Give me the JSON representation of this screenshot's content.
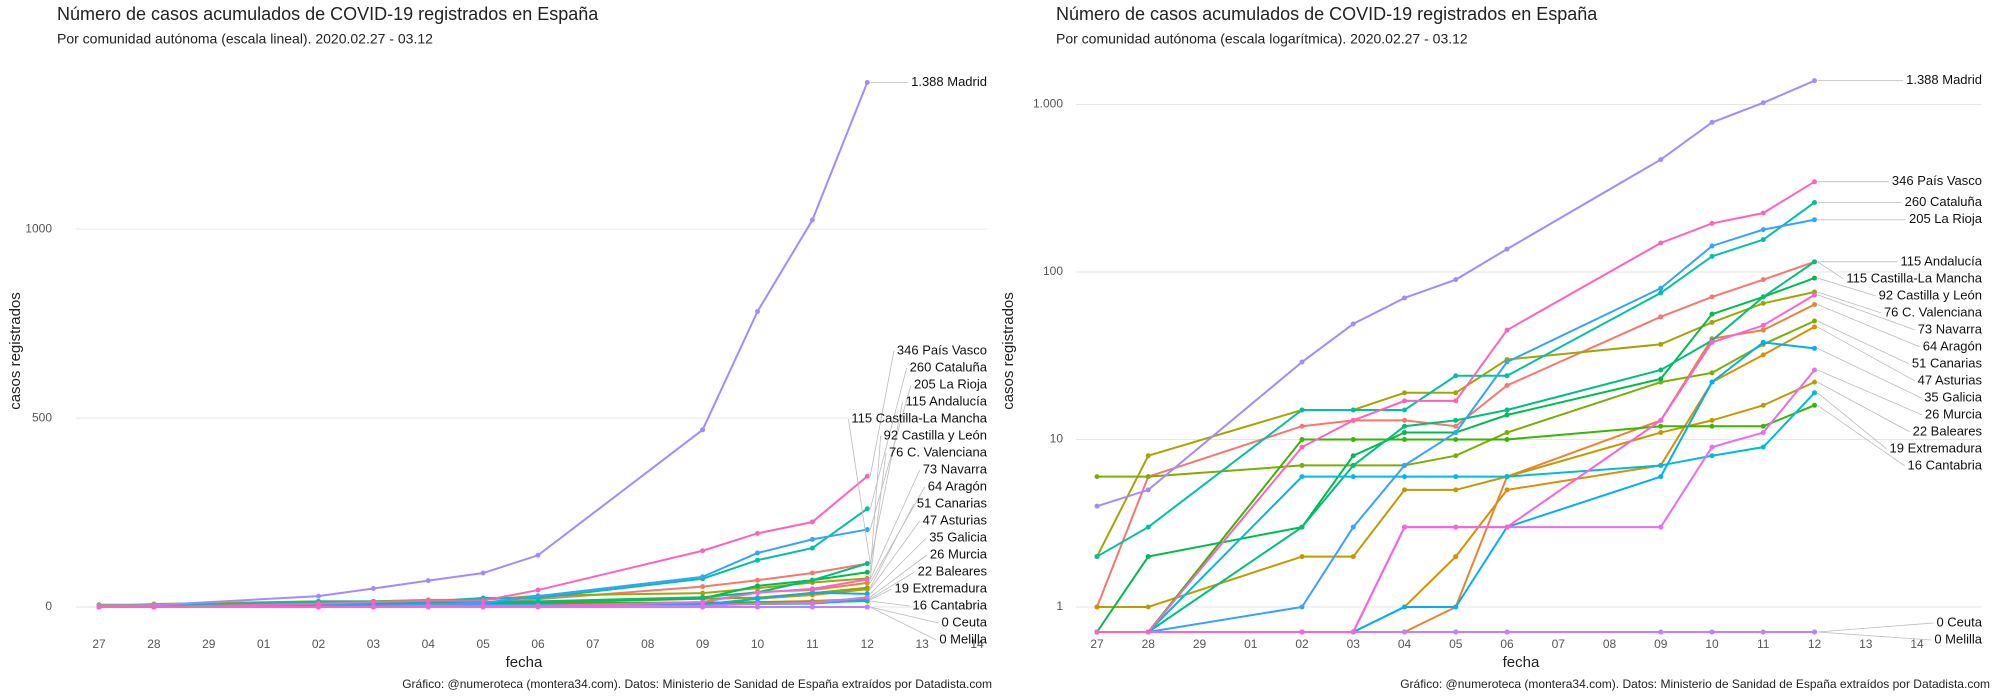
{
  "chart_data": [
    {
      "type": "line",
      "title": "Número de casos acumulados de COVID-19 registrados en España",
      "subtitle": "Por comunidad autónoma (escala lineal). 2020.02.27 - 03.12",
      "x_label": "fecha",
      "y_label": "casos registrados",
      "caption": "Gráfico: @numeroteca (montera34.com). Datos: Ministerio de Sanidad de España extraídos por Datadista.com",
      "log_scale": false,
      "grid": true,
      "x": [
        "27",
        "28",
        "02",
        "03",
        "04",
        "05",
        "06",
        "09",
        "10",
        "11",
        "12"
      ],
      "xticks": [
        "27",
        "28",
        "29",
        "01",
        "02",
        "03",
        "04",
        "05",
        "06",
        "07",
        "08",
        "09",
        "10",
        "11",
        "12",
        "13",
        "14"
      ],
      "ylim": [
        -66,
        1421
      ],
      "yticks": [
        0,
        500,
        1000
      ],
      "series": [
        {
          "label": "115 Andalucía",
          "color": "#F8766D",
          "values": [
            1,
            6,
            12,
            13,
            13,
            12,
            21,
            54,
            71,
            90,
            115
          ]
        },
        {
          "label": "64 Aragón",
          "color": "#EA8331",
          "values": [
            0,
            0,
            0,
            0,
            0,
            1,
            6,
            13,
            40,
            45,
            64
          ]
        },
        {
          "label": "47 Asturias",
          "color": "#D89000",
          "values": [
            0,
            0,
            0,
            0,
            1,
            2,
            5,
            7,
            22,
            32,
            47
          ]
        },
        {
          "label": "22 Baleares",
          "color": "#C09B00",
          "values": [
            1,
            1,
            2,
            2,
            5,
            5,
            6,
            11,
            13,
            16,
            22
          ]
        },
        {
          "label": "76 C. Valenciana",
          "color": "#A3A500",
          "values": [
            2,
            8,
            15,
            15,
            19,
            19,
            30,
            37,
            50,
            65,
            76
          ]
        },
        {
          "label": "51 Canarias",
          "color": "#7CAE00",
          "values": [
            6,
            6,
            7,
            7,
            7,
            8,
            11,
            22,
            25,
            37,
            51
          ]
        },
        {
          "label": "16 Cantabria",
          "color": "#39B600",
          "values": [
            0,
            0,
            10,
            10,
            10,
            10,
            10,
            12,
            12,
            12,
            16
          ]
        },
        {
          "label": "92 Castilla y León",
          "color": "#00BB4E",
          "values": [
            0,
            2,
            3,
            8,
            11,
            11,
            14,
            23,
            56,
            71,
            92
          ]
        },
        {
          "label": "115 Castilla-La Mancha",
          "color": "#00BF7D",
          "values": [
            0,
            0,
            3,
            7,
            12,
            13,
            15,
            26,
            39,
            71,
            115
          ]
        },
        {
          "label": "260 Cataluña",
          "color": "#00C1A3",
          "values": [
            2,
            3,
            15,
            15,
            15,
            24,
            24,
            75,
            124,
            156,
            260
          ]
        },
        {
          "label": "0 Ceuta",
          "color": "#00BFC4",
          "values": [
            0,
            0,
            0,
            0,
            0,
            0,
            0,
            0,
            0,
            0,
            0
          ]
        },
        {
          "label": "19 Extremadura",
          "color": "#00BAE0",
          "values": [
            0,
            0,
            6,
            6,
            6,
            6,
            6,
            7,
            8,
            9,
            19
          ]
        },
        {
          "label": "35 Galicia",
          "color": "#00B0F6",
          "values": [
            0,
            0,
            0,
            0,
            1,
            1,
            3,
            6,
            22,
            38,
            35
          ]
        },
        {
          "label": "205 La Rioja",
          "color": "#35A2FF",
          "values": [
            0,
            0,
            1,
            3,
            7,
            11,
            29,
            80,
            143,
            179,
            205
          ]
        },
        {
          "label": "1.388 Madrid",
          "color": "#A58AFF",
          "values": [
            4,
            5,
            29,
            49,
            70,
            90,
            137,
            469,
            782,
            1024,
            1388
          ]
        },
        {
          "label": "0 Melilla",
          "color": "#C77CFF",
          "values": [
            0,
            0,
            0,
            0,
            0,
            0,
            0,
            0,
            0,
            0,
            0
          ]
        },
        {
          "label": "26 Murcia",
          "color": "#E76BF3",
          "values": [
            0,
            0,
            0,
            0,
            3,
            3,
            3,
            3,
            9,
            11,
            26
          ]
        },
        {
          "label": "73 Navarra",
          "color": "#FA62DB",
          "values": [
            0,
            0,
            0,
            0,
            3,
            3,
            3,
            13,
            38,
            48,
            73
          ]
        },
        {
          "label": "346 País Vasco",
          "color": "#FF62BC",
          "values": [
            0,
            0,
            9,
            13,
            17,
            17,
            45,
            149,
            195,
            225,
            346
          ]
        }
      ]
    },
    {
      "type": "line",
      "title": "Número de casos acumulados de COVID-19 registrados en España",
      "subtitle": "Por comunidad autónoma (escala logarítmica). 2020.02.27 - 03.12",
      "x_label": "fecha",
      "y_label": "casos registrados",
      "caption": "Gráfico: @numeroteca (montera34.com). Datos: Ministerio de Sanidad de España extraídos por Datadista.com",
      "log_scale": true,
      "grid": true,
      "x": [
        "27",
        "28",
        "02",
        "03",
        "04",
        "05",
        "06",
        "09",
        "10",
        "11",
        "12"
      ],
      "xticks": [
        "27",
        "28",
        "29",
        "01",
        "02",
        "03",
        "04",
        "05",
        "06",
        "07",
        "08",
        "09",
        "10",
        "11",
        "12",
        "13",
        "14"
      ],
      "ylim": [
        0.709,
        1607
      ],
      "yticks": [
        1,
        10,
        100,
        {
          "value": 1000,
          "label": "1.000"
        }
      ],
      "series": [
        {
          "label": "115 Andalucía",
          "color": "#F8766D",
          "values": [
            1,
            6,
            12,
            13,
            13,
            12,
            21,
            54,
            71,
            90,
            115
          ]
        },
        {
          "label": "64 Aragón",
          "color": "#EA8331",
          "values": [
            0,
            0,
            0,
            0,
            0,
            1,
            6,
            13,
            40,
            45,
            64
          ]
        },
        {
          "label": "47 Asturias",
          "color": "#D89000",
          "values": [
            0,
            0,
            0,
            0,
            1,
            2,
            5,
            7,
            22,
            32,
            47
          ]
        },
        {
          "label": "22 Baleares",
          "color": "#C09B00",
          "values": [
            1,
            1,
            2,
            2,
            5,
            5,
            6,
            11,
            13,
            16,
            22
          ]
        },
        {
          "label": "76 C. Valenciana",
          "color": "#A3A500",
          "values": [
            2,
            8,
            15,
            15,
            19,
            19,
            30,
            37,
            50,
            65,
            76
          ]
        },
        {
          "label": "51 Canarias",
          "color": "#7CAE00",
          "values": [
            6,
            6,
            7,
            7,
            7,
            8,
            11,
            22,
            25,
            37,
            51
          ]
        },
        {
          "label": "16 Cantabria",
          "color": "#39B600",
          "values": [
            0,
            0,
            10,
            10,
            10,
            10,
            10,
            12,
            12,
            12,
            16
          ]
        },
        {
          "label": "92 Castilla y León",
          "color": "#00BB4E",
          "values": [
            0,
            2,
            3,
            8,
            11,
            11,
            14,
            23,
            56,
            71,
            92
          ]
        },
        {
          "label": "115 Castilla-La Mancha",
          "color": "#00BF7D",
          "values": [
            0,
            0,
            3,
            7,
            12,
            13,
            15,
            26,
            39,
            71,
            115
          ]
        },
        {
          "label": "260 Cataluña",
          "color": "#00C1A3",
          "values": [
            2,
            3,
            15,
            15,
            15,
            24,
            24,
            75,
            124,
            156,
            260
          ]
        },
        {
          "label": "0 Ceuta",
          "color": "#00BFC4",
          "values": [
            0,
            0,
            0,
            0,
            0,
            0,
            0,
            0,
            0,
            0,
            0
          ]
        },
        {
          "label": "19 Extremadura",
          "color": "#00BAE0",
          "values": [
            0,
            0,
            6,
            6,
            6,
            6,
            6,
            7,
            8,
            9,
            19
          ]
        },
        {
          "label": "35 Galicia",
          "color": "#00B0F6",
          "values": [
            0,
            0,
            0,
            0,
            1,
            1,
            3,
            6,
            22,
            38,
            35
          ]
        },
        {
          "label": "205 La Rioja",
          "color": "#35A2FF",
          "values": [
            0,
            0,
            1,
            3,
            7,
            11,
            29,
            80,
            143,
            179,
            205
          ]
        },
        {
          "label": "1.388 Madrid",
          "color": "#A58AFF",
          "values": [
            4,
            5,
            29,
            49,
            70,
            90,
            137,
            469,
            782,
            1024,
            1388
          ]
        },
        {
          "label": "0 Melilla",
          "color": "#C77CFF",
          "values": [
            0,
            0,
            0,
            0,
            0,
            0,
            0,
            0,
            0,
            0,
            0
          ]
        },
        {
          "label": "26 Murcia",
          "color": "#E76BF3",
          "values": [
            0,
            0,
            0,
            0,
            3,
            3,
            3,
            3,
            9,
            11,
            26
          ]
        },
        {
          "label": "73 Navarra",
          "color": "#FA62DB",
          "values": [
            0,
            0,
            0,
            0,
            3,
            3,
            3,
            13,
            38,
            48,
            73
          ]
        },
        {
          "label": "346 País Vasco",
          "color": "#FF62BC",
          "values": [
            0,
            0,
            9,
            13,
            17,
            17,
            45,
            149,
            195,
            225,
            346
          ]
        }
      ]
    }
  ]
}
